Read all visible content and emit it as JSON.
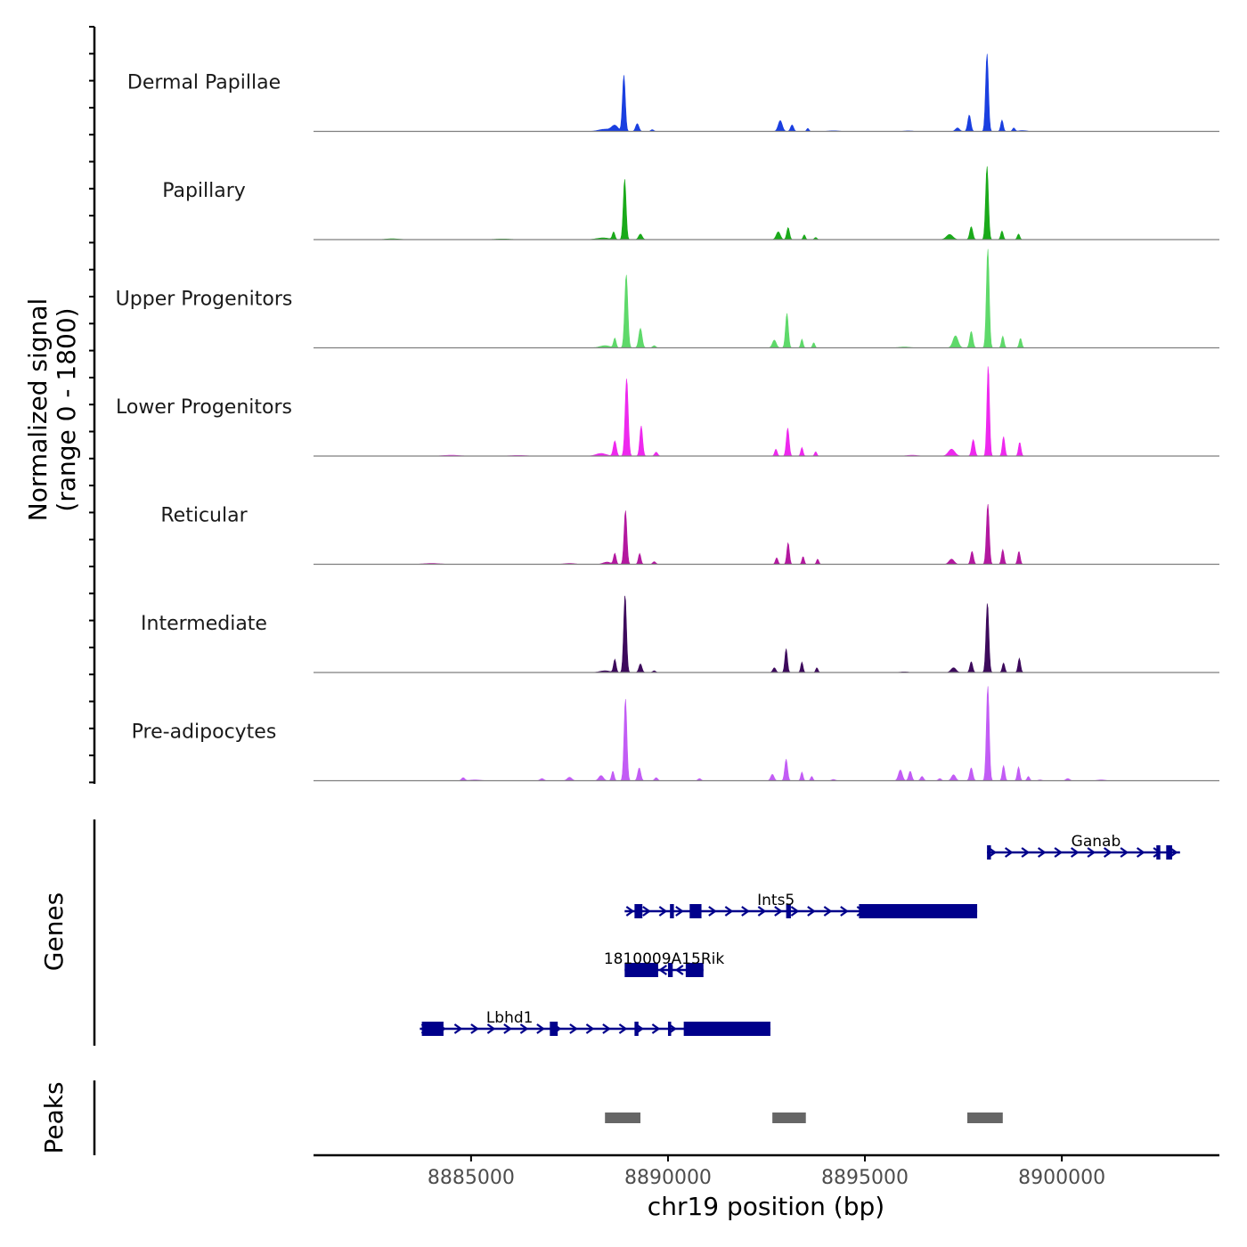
{
  "chart_data": {
    "type": "area",
    "chromosome": "chr19",
    "xlabel": "chr19 position (bp)",
    "xlim": [
      8881000,
      8904000
    ],
    "x_ticks": [
      8885000,
      8890000,
      8895000,
      8900000
    ],
    "x_tick_labels": [
      "8885000",
      "8890000",
      "8895000",
      "8900000"
    ],
    "signal_ylabel_line1": "Normalized signal",
    "signal_ylabel_line2": "(range 0 - 1800)",
    "signal_range": [
      0,
      1800
    ],
    "genes_label": "Genes",
    "peaks_label": "Peaks",
    "series": [
      {
        "name": "Dermal Papillae",
        "color": "#1a3fe0",
        "peaks": [
          [
            8888400,
            50,
            500
          ],
          [
            8888650,
            130,
            250
          ],
          [
            8888880,
            1300,
            110
          ],
          [
            8889220,
            180,
            130
          ],
          [
            8889600,
            40,
            120
          ],
          [
            8892850,
            250,
            160
          ],
          [
            8893150,
            150,
            120
          ],
          [
            8893550,
            70,
            90
          ],
          [
            8894200,
            15,
            400
          ],
          [
            8897350,
            80,
            160
          ],
          [
            8897650,
            380,
            120
          ],
          [
            8898100,
            1800,
            110
          ],
          [
            8898480,
            260,
            100
          ],
          [
            8898780,
            80,
            100
          ],
          [
            8899000,
            20,
            300
          ],
          [
            8896100,
            12,
            350
          ]
        ]
      },
      {
        "name": "Papillary",
        "color": "#1aaa1a",
        "peaks": [
          [
            8883000,
            20,
            500
          ],
          [
            8885800,
            15,
            600
          ],
          [
            8888350,
            40,
            500
          ],
          [
            8888620,
            170,
            100
          ],
          [
            8888900,
            1400,
            110
          ],
          [
            8889300,
            130,
            140
          ],
          [
            8892800,
            180,
            160
          ],
          [
            8893050,
            280,
            110
          ],
          [
            8893460,
            110,
            90
          ],
          [
            8893750,
            50,
            100
          ],
          [
            8897150,
            120,
            250
          ],
          [
            8897700,
            300,
            120
          ],
          [
            8898100,
            1700,
            110
          ],
          [
            8898480,
            200,
            100
          ],
          [
            8898900,
            130,
            100
          ]
        ]
      },
      {
        "name": "Upper Progenitors",
        "color": "#5ed96a",
        "peaks": [
          [
            8888400,
            50,
            400
          ],
          [
            8888650,
            220,
            100
          ],
          [
            8888940,
            1700,
            120
          ],
          [
            8889300,
            450,
            130
          ],
          [
            8889650,
            50,
            120
          ],
          [
            8892700,
            180,
            150
          ],
          [
            8893020,
            800,
            110
          ],
          [
            8893400,
            200,
            90
          ],
          [
            8893700,
            120,
            90
          ],
          [
            8897300,
            280,
            200
          ],
          [
            8897700,
            380,
            120
          ],
          [
            8898120,
            2300,
            110
          ],
          [
            8898500,
            270,
            100
          ],
          [
            8898950,
            220,
            100
          ],
          [
            8896000,
            20,
            400
          ]
        ]
      },
      {
        "name": "Lower Progenitors",
        "color": "#ee28ee",
        "peaks": [
          [
            8884500,
            20,
            600
          ],
          [
            8886200,
            15,
            600
          ],
          [
            8888300,
            60,
            400
          ],
          [
            8888650,
            350,
            120
          ],
          [
            8888950,
            1800,
            120
          ],
          [
            8889320,
            700,
            110
          ],
          [
            8889700,
            90,
            120
          ],
          [
            8892740,
            160,
            100
          ],
          [
            8893040,
            650,
            110
          ],
          [
            8893400,
            200,
            90
          ],
          [
            8893750,
            100,
            90
          ],
          [
            8897200,
            160,
            250
          ],
          [
            8897750,
            380,
            120
          ],
          [
            8898130,
            2100,
            100
          ],
          [
            8898520,
            450,
            100
          ],
          [
            8898930,
            320,
            100
          ],
          [
            8896200,
            20,
            400
          ]
        ]
      },
      {
        "name": "Reticular",
        "color": "#b3189f",
        "peaks": [
          [
            8884000,
            20,
            600
          ],
          [
            8887500,
            20,
            400
          ],
          [
            8888450,
            50,
            300
          ],
          [
            8888650,
            250,
            100
          ],
          [
            8888920,
            1250,
            110
          ],
          [
            8889280,
            250,
            100
          ],
          [
            8889650,
            60,
            120
          ],
          [
            8892760,
            150,
            100
          ],
          [
            8893050,
            500,
            100
          ],
          [
            8893430,
            180,
            90
          ],
          [
            8893800,
            120,
            90
          ],
          [
            8897200,
            120,
            200
          ],
          [
            8897720,
            300,
            110
          ],
          [
            8898120,
            1400,
            110
          ],
          [
            8898500,
            340,
            100
          ],
          [
            8898910,
            300,
            100
          ]
        ]
      },
      {
        "name": "Intermediate",
        "color": "#3d0a5c",
        "peaks": [
          [
            8888400,
            40,
            400
          ],
          [
            8888650,
            300,
            100
          ],
          [
            8888910,
            1800,
            110
          ],
          [
            8889300,
            200,
            120
          ],
          [
            8889650,
            40,
            120
          ],
          [
            8892700,
            110,
            120
          ],
          [
            8893000,
            550,
            100
          ],
          [
            8893400,
            240,
            90
          ],
          [
            8893780,
            110,
            90
          ],
          [
            8897250,
            110,
            200
          ],
          [
            8897700,
            250,
            110
          ],
          [
            8898110,
            1620,
            110
          ],
          [
            8898520,
            220,
            100
          ],
          [
            8898920,
            330,
            100
          ],
          [
            8896000,
            15,
            300
          ]
        ]
      },
      {
        "name": "Pre-adipocytes",
        "color": "#c25cf5",
        "peaks": [
          [
            8884800,
            70,
            130
          ],
          [
            8885100,
            20,
            400
          ],
          [
            8886800,
            50,
            150
          ],
          [
            8887500,
            80,
            180
          ],
          [
            8888300,
            120,
            180
          ],
          [
            8888600,
            220,
            100
          ],
          [
            8888920,
            1900,
            110
          ],
          [
            8889270,
            300,
            120
          ],
          [
            8889700,
            70,
            120
          ],
          [
            8890800,
            50,
            120
          ],
          [
            8892650,
            150,
            130
          ],
          [
            8893000,
            500,
            110
          ],
          [
            8893400,
            200,
            90
          ],
          [
            8893650,
            100,
            90
          ],
          [
            8894200,
            30,
            150
          ],
          [
            8895900,
            250,
            150
          ],
          [
            8896150,
            220,
            120
          ],
          [
            8896450,
            100,
            120
          ],
          [
            8896900,
            50,
            120
          ],
          [
            8897250,
            140,
            160
          ],
          [
            8897700,
            300,
            120
          ],
          [
            8898120,
            2200,
            110
          ],
          [
            8898520,
            350,
            100
          ],
          [
            8898900,
            320,
            100
          ],
          [
            8899150,
            100,
            100
          ],
          [
            8899450,
            20,
            150
          ],
          [
            8900150,
            50,
            150
          ],
          [
            8901000,
            20,
            300
          ]
        ]
      }
    ],
    "genes": [
      {
        "name": "Ganab",
        "strand": "+",
        "start": 8898100,
        "end": 8903000,
        "exons": [
          [
            8898100,
            8898200
          ],
          [
            8902400,
            8902500
          ],
          [
            8902650,
            8902800
          ]
        ]
      },
      {
        "name": "Ints5",
        "strand": "+",
        "start": 8888900,
        "end": 8897850,
        "exons": [
          [
            8889150,
            8889350
          ],
          [
            8890050,
            8890150
          ],
          [
            8890550,
            8890850
          ],
          [
            8893000,
            8893120
          ],
          [
            8894850,
            8897850
          ]
        ]
      },
      {
        "name": "1810009A15Rik",
        "strand": "-",
        "start": 8888900,
        "end": 8890900,
        "exons": [
          [
            8888900,
            8889750
          ],
          [
            8890000,
            8890120
          ],
          [
            8890450,
            8890900
          ]
        ]
      },
      {
        "name": "Lbhd1",
        "strand": "+",
        "start": 8883700,
        "end": 8892600,
        "exons": [
          [
            8883750,
            8884300
          ],
          [
            8887000,
            8887200
          ],
          [
            8889150,
            8889250
          ],
          [
            8890000,
            8890080
          ],
          [
            8890400,
            8892600
          ]
        ]
      }
    ],
    "peak_regions": [
      [
        8888400,
        8889300
      ],
      [
        8892650,
        8893500
      ],
      [
        8897600,
        8898500
      ]
    ]
  }
}
